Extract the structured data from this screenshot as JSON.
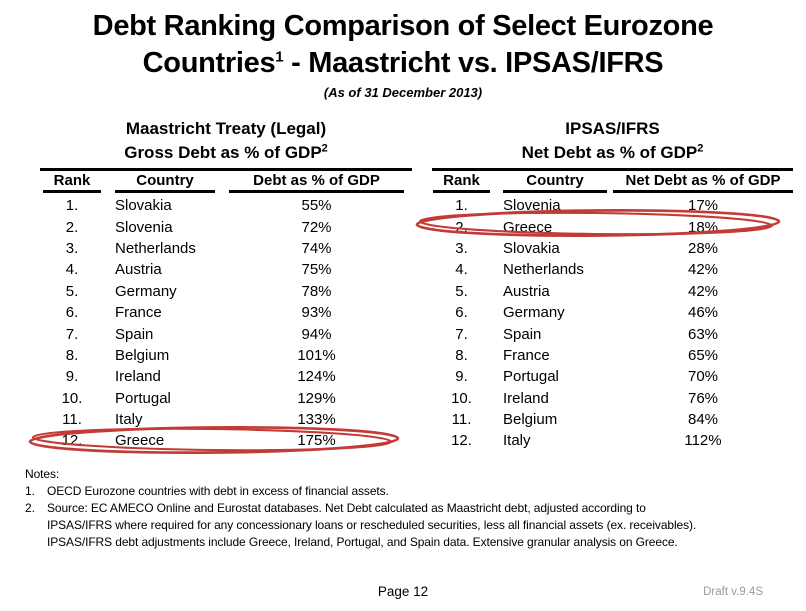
{
  "title": {
    "line1": "Debt Ranking Comparison of Select Eurozone",
    "line2_text": "Countries",
    "line2_sup": "1",
    "line2_rest": " - Maastricht vs. IPSAS/IFRS",
    "subtitle": "(As of 31 December 2013)"
  },
  "tables": [
    {
      "heading_line1": "Maastricht Treaty (Legal)",
      "heading_line2": "Gross Debt as % of GDP",
      "heading_sup": "2",
      "columns": {
        "rank": "Rank",
        "country": "Country",
        "value": "Debt as % of GDP"
      },
      "rows": [
        {
          "rank": "1.",
          "country": "Slovakia",
          "value": "55%"
        },
        {
          "rank": "2.",
          "country": "Slovenia",
          "value": "72%"
        },
        {
          "rank": "3.",
          "country": "Netherlands",
          "value": "74%"
        },
        {
          "rank": "4.",
          "country": "Austria",
          "value": "75%"
        },
        {
          "rank": "5.",
          "country": "Germany",
          "value": "78%"
        },
        {
          "rank": "6.",
          "country": "France",
          "value": "93%"
        },
        {
          "rank": "7.",
          "country": "Spain",
          "value": "94%"
        },
        {
          "rank": "8.",
          "country": "Belgium",
          "value": "101%"
        },
        {
          "rank": "9.",
          "country": "Ireland",
          "value": "124%"
        },
        {
          "rank": "10.",
          "country": "Portugal",
          "value": "129%"
        },
        {
          "rank": "11.",
          "country": "Italy",
          "value": "133%"
        },
        {
          "rank": "12.",
          "country": "Greece",
          "value": "175%"
        }
      ],
      "highlighted_country": "Greece"
    },
    {
      "heading_line1": "IPSAS/IFRS",
      "heading_line2": "Net Debt as % of GDP",
      "heading_sup": "2",
      "columns": {
        "rank": "Rank",
        "country": "Country",
        "value": "Net Debt as % of GDP"
      },
      "rows": [
        {
          "rank": "1.",
          "country": "Slovenia",
          "value": "17%"
        },
        {
          "rank": "2.",
          "country": "Greece",
          "value": "18%"
        },
        {
          "rank": "3.",
          "country": "Slovakia",
          "value": "28%"
        },
        {
          "rank": "4.",
          "country": "Netherlands",
          "value": "42%"
        },
        {
          "rank": "5.",
          "country": "Austria",
          "value": "42%"
        },
        {
          "rank": "6.",
          "country": "Germany",
          "value": "46%"
        },
        {
          "rank": "7.",
          "country": "Spain",
          "value": "63%"
        },
        {
          "rank": "8.",
          "country": "France",
          "value": "65%"
        },
        {
          "rank": "9.",
          "country": "Portugal",
          "value": "70%"
        },
        {
          "rank": "10.",
          "country": "Ireland",
          "value": "76%"
        },
        {
          "rank": "11.",
          "country": "Belgium",
          "value": "84%"
        },
        {
          "rank": "12.",
          "country": "Italy",
          "value": "112%"
        }
      ],
      "highlighted_country": "Greece"
    }
  ],
  "notes": {
    "label": "Notes:",
    "items": [
      {
        "num": "1.",
        "lines": [
          "OECD Eurozone countries with debt in excess of financial assets."
        ]
      },
      {
        "num": "2.",
        "lines": [
          "Source:  EC AMECO Online and Eurostat databases.  Net Debt calculated as Maastricht debt, adjusted according to",
          "IPSAS/IFRS where required for any concessionary loans or rescheduled securities, less all financial assets (ex. receivables).",
          "IPSAS/IFRS debt adjustments include Greece, Ireland, Portugal, and Spain data. Extensive granular analysis on Greece."
        ]
      }
    ]
  },
  "footer": {
    "page_label": "Page 12",
    "draft_label": "Draft v.9.4S"
  },
  "colors": {
    "highlight_red": "#c23b36",
    "draft_gray": "#9a9a9a",
    "text": "#000000"
  }
}
